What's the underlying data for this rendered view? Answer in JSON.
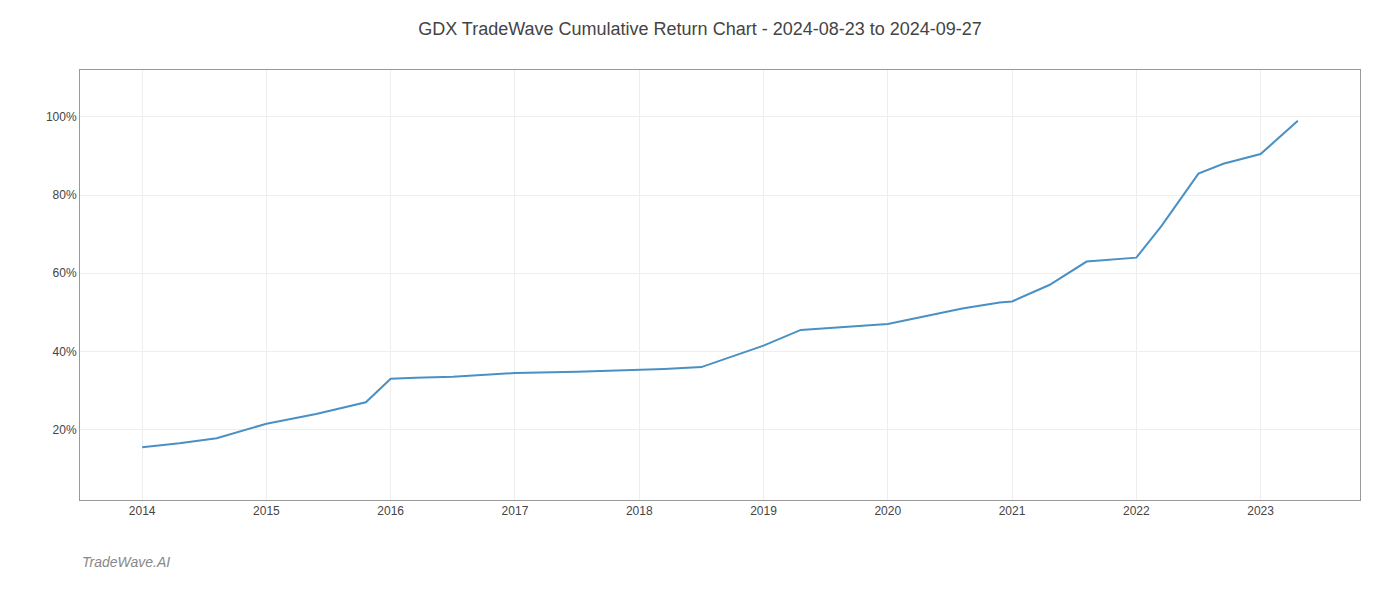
{
  "chart_data": {
    "type": "line",
    "title": "GDX TradeWave Cumulative Return Chart - 2024-08-23 to 2024-09-27",
    "annotations": [
      "TradeWave.AI"
    ],
    "x": [
      2014.0,
      2014.3,
      2014.6,
      2015.0,
      2015.4,
      2015.8,
      2016.0,
      2016.2,
      2016.5,
      2017.0,
      2017.5,
      2018.0,
      2018.2,
      2018.5,
      2019.0,
      2019.3,
      2019.6,
      2020.0,
      2020.3,
      2020.6,
      2020.9,
      2021.0,
      2021.3,
      2021.6,
      2022.0,
      2022.2,
      2022.5,
      2022.7,
      2023.0,
      2023.3
    ],
    "values": [
      0.155,
      0.165,
      0.178,
      0.215,
      0.24,
      0.27,
      0.33,
      0.333,
      0.335,
      0.345,
      0.348,
      0.352,
      0.355,
      0.36,
      0.415,
      0.455,
      0.462,
      0.47,
      0.49,
      0.51,
      0.525,
      0.528,
      0.57,
      0.63,
      0.64,
      0.72,
      0.855,
      0.88,
      0.905,
      0.99
    ],
    "color": "#4a90c4",
    "xlim": [
      2013.5,
      2023.8
    ],
    "ylim": [
      0.02,
      1.12
    ],
    "xticks": [
      2014,
      2015,
      2016,
      2017,
      2018,
      2019,
      2020,
      2021,
      2022,
      2023
    ],
    "yticks": [
      {
        "value": 0.2,
        "label": "20%"
      },
      {
        "value": 0.4,
        "label": "40%"
      },
      {
        "value": 0.6,
        "label": "60%"
      },
      {
        "value": 0.8,
        "label": "80%"
      },
      {
        "value": 1.0,
        "label": "100%"
      }
    ],
    "grid": true
  }
}
